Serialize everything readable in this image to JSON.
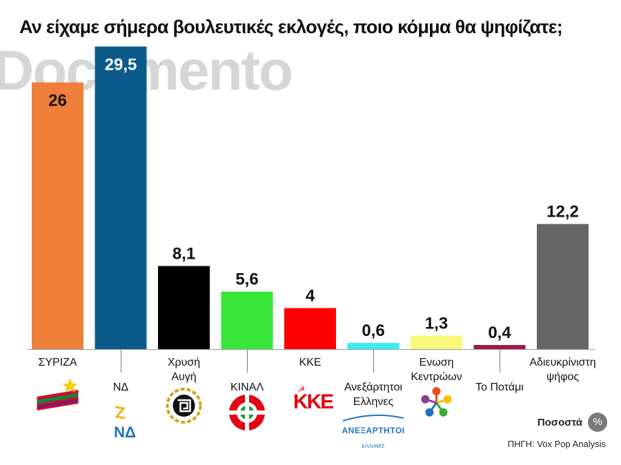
{
  "header": {
    "title": "Αν είχαμε σήμερα βουλευτικές εκλογές, ποιο κόμμα θα ψηφίζατε;",
    "watermark": "Documento"
  },
  "footer": {
    "unit_label": "Ποσοστά",
    "unit_symbol": "%",
    "source": "ΠΗΓΗ: Vox Pop Analysis"
  },
  "chart_data": {
    "type": "bar",
    "categories": [
      "ΣΥΡΙΖΑ",
      "ΝΔ",
      "Χρυσή Αυγή",
      "ΚΙΝΑΛ",
      "ΚΚΕ",
      "Ανεξάρτητοι Ελληνες",
      "Ενωση Κεντρώων",
      "Το Ποτάμι",
      "Αδιευκρίνιστη ψήφος"
    ],
    "category_lines": [
      [
        "ΣΥΡΙΖΑ"
      ],
      [
        "ΝΔ"
      ],
      [
        "Χρυσή",
        "Αυγή"
      ],
      [
        "ΚΙΝΑΛ"
      ],
      [
        "ΚΚΕ"
      ],
      [
        "Ανεξάρτητοι",
        "Ελληνες"
      ],
      [
        "Ενωση",
        "Κεντρώων"
      ],
      [
        "Το Ποτάμι"
      ],
      [
        "Αδιευκρίνιστη",
        "ψήφος"
      ]
    ],
    "values": [
      26,
      29.5,
      8.1,
      5.6,
      4,
      0.6,
      1.3,
      0.4,
      12.2
    ],
    "value_labels": [
      "26",
      "29,5",
      "8,1",
      "5,6",
      "4",
      "0,6",
      "1,3",
      "0,4",
      "12,2"
    ],
    "colors": [
      "#f07f3c",
      "#0b5b8a",
      "#000000",
      "#38e538",
      "#ff0000",
      "#38ecf2",
      "#f8f87a",
      "#9a1a4a",
      "#666666"
    ],
    "icons": [
      "syriza-logo-icon",
      "nd-logo-icon",
      "golden-dawn-logo-icon",
      "kinal-logo-icon",
      "kke-logo-icon",
      "anel-logo-icon",
      "union-centrists-logo-icon",
      "",
      ""
    ],
    "ylim": [
      0,
      30
    ],
    "grid": false,
    "legend": "none",
    "logo_texts": {
      "nd": "ΝΔ",
      "kke": "ΚΚΕ",
      "anel_top": "ΑΝΕΞΑΡΤΗΤΟΙ",
      "anel_bottom": "ΕΛΛΗΝΕΣ"
    }
  }
}
